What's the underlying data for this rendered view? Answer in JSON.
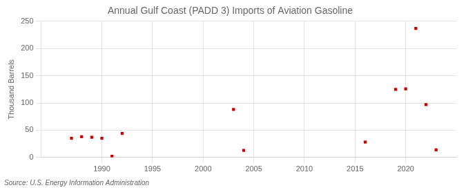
{
  "chart_data": {
    "type": "scatter",
    "title": "Annual Gulf Coast (PADD 3) Imports of Aviation Gasoline",
    "ylabel": "Thousand Barrels",
    "annotation": "Source: U.S. Energy Information Administration",
    "x": [
      1987,
      1988,
      1989,
      1990,
      1991,
      1992,
      2003,
      2004,
      2016,
      2019,
      2020,
      2021,
      2022,
      2023
    ],
    "values": [
      35,
      38,
      37,
      35,
      2,
      44,
      88,
      13,
      28,
      125,
      126,
      237,
      97,
      14
    ],
    "color": "#cc0000",
    "marker": "square",
    "xlim": [
      1984,
      2025
    ],
    "ylim": [
      0,
      250
    ],
    "xticks": [
      1990,
      1995,
      2000,
      2005,
      2010,
      2015,
      2020
    ],
    "yticks": [
      0,
      50,
      100,
      150,
      200,
      250
    ],
    "grid": true
  }
}
